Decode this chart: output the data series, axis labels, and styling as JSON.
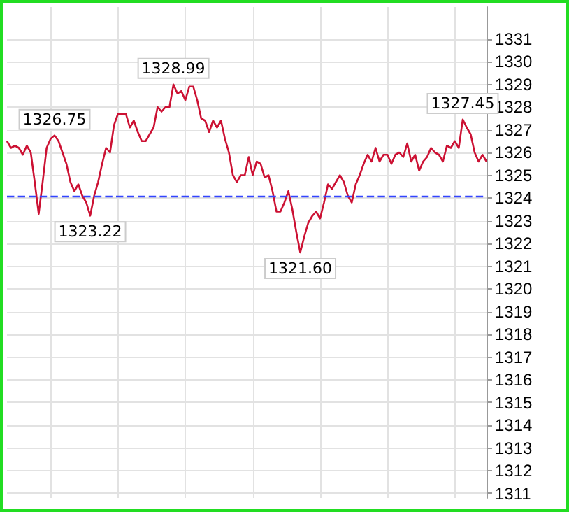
{
  "chart_data": {
    "type": "line",
    "categories": [
      null,
      null,
      null,
      null,
      null,
      null,
      null,
      null,
      null,
      null,
      null,
      null,
      null,
      null,
      null,
      null,
      null,
      null,
      null,
      null,
      null,
      null,
      null,
      null,
      null,
      null,
      null,
      null,
      null,
      null,
      null,
      null,
      null,
      null,
      null,
      null,
      null,
      null,
      null,
      null,
      null,
      null,
      null,
      null,
      null,
      null,
      null,
      null,
      null,
      null,
      null,
      null,
      null,
      null,
      null,
      null,
      null,
      null,
      null,
      null,
      null,
      null,
      null,
      null,
      null,
      null,
      null,
      null,
      null,
      null,
      null,
      null,
      null,
      null,
      null,
      null,
      null,
      null,
      null,
      null,
      null,
      null,
      null,
      null,
      null,
      null,
      null,
      null,
      null,
      null,
      null,
      null,
      null,
      null,
      null,
      null,
      null,
      null,
      null,
      null,
      null,
      null,
      null,
      null,
      null,
      null,
      null,
      null,
      null,
      null,
      null,
      null,
      null,
      null,
      null,
      null,
      null,
      null,
      null,
      null,
      null,
      null
    ],
    "series": [
      {
        "color": "#cc1133",
        "values": [
          1326.5,
          1326.2,
          1326.3,
          1326.2,
          1325.9,
          1326.3,
          1326.0,
          1324.7,
          1323.3,
          1324.7,
          1326.2,
          1326.6,
          1326.75,
          1326.5,
          1326.0,
          1325.5,
          1324.7,
          1324.3,
          1324.6,
          1324.1,
          1323.8,
          1323.22,
          1324.1,
          1324.7,
          1325.5,
          1326.2,
          1326.0,
          1327.2,
          1327.7,
          1327.7,
          1327.7,
          1327.1,
          1327.4,
          1326.9,
          1326.5,
          1326.5,
          1326.8,
          1327.1,
          1328.0,
          1327.8,
          1328.0,
          1328.0,
          1328.99,
          1328.6,
          1328.7,
          1328.3,
          1328.9,
          1328.9,
          1328.3,
          1327.5,
          1327.4,
          1326.9,
          1327.4,
          1327.1,
          1327.4,
          1326.6,
          1326.0,
          1325.0,
          1324.7,
          1325.0,
          1325.0,
          1325.8,
          1325.0,
          1325.6,
          1325.5,
          1324.9,
          1325.0,
          1324.3,
          1323.4,
          1323.4,
          1323.8,
          1324.3,
          1323.5,
          1322.5,
          1321.6,
          1322.3,
          1322.9,
          1323.2,
          1323.4,
          1323.1,
          1323.8,
          1324.6,
          1324.4,
          1324.7,
          1325.0,
          1324.7,
          1324.1,
          1323.8,
          1324.6,
          1325.0,
          1325.5,
          1325.9,
          1325.6,
          1326.2,
          1325.6,
          1325.9,
          1325.9,
          1325.5,
          1325.9,
          1326.0,
          1325.8,
          1326.4,
          1325.6,
          1325.9,
          1325.2,
          1325.6,
          1325.8,
          1326.2,
          1326.0,
          1325.9,
          1325.6,
          1326.3,
          1326.2,
          1326.5,
          1326.2,
          1327.45,
          1327.1,
          1326.8,
          1326.0,
          1325.6,
          1325.9,
          1325.6
        ]
      }
    ],
    "ylim": [
      1310.8,
      1332.4
    ],
    "yticks": [
      1311,
      1312,
      1313,
      1314,
      1315,
      1316,
      1317,
      1318,
      1319,
      1320,
      1321,
      1322,
      1323,
      1324,
      1325,
      1326,
      1327,
      1328,
      1329,
      1330,
      1331
    ],
    "grid": true,
    "marker": "none",
    "line_style": "solid",
    "ref_lines": [
      {
        "axis": "y",
        "value": 1324.1,
        "color": "#3344ff",
        "line_style": "dashed"
      }
    ],
    "annotations": [
      {
        "text": "1326.75",
        "y": 1326.75
      },
      {
        "text": "1328.99",
        "y": 1328.99
      },
      {
        "text": "1323.22",
        "y": 1323.22
      },
      {
        "text": "1321.60",
        "y": 1321.6
      },
      {
        "text": "1327.45",
        "y": 1327.45
      }
    ]
  }
}
